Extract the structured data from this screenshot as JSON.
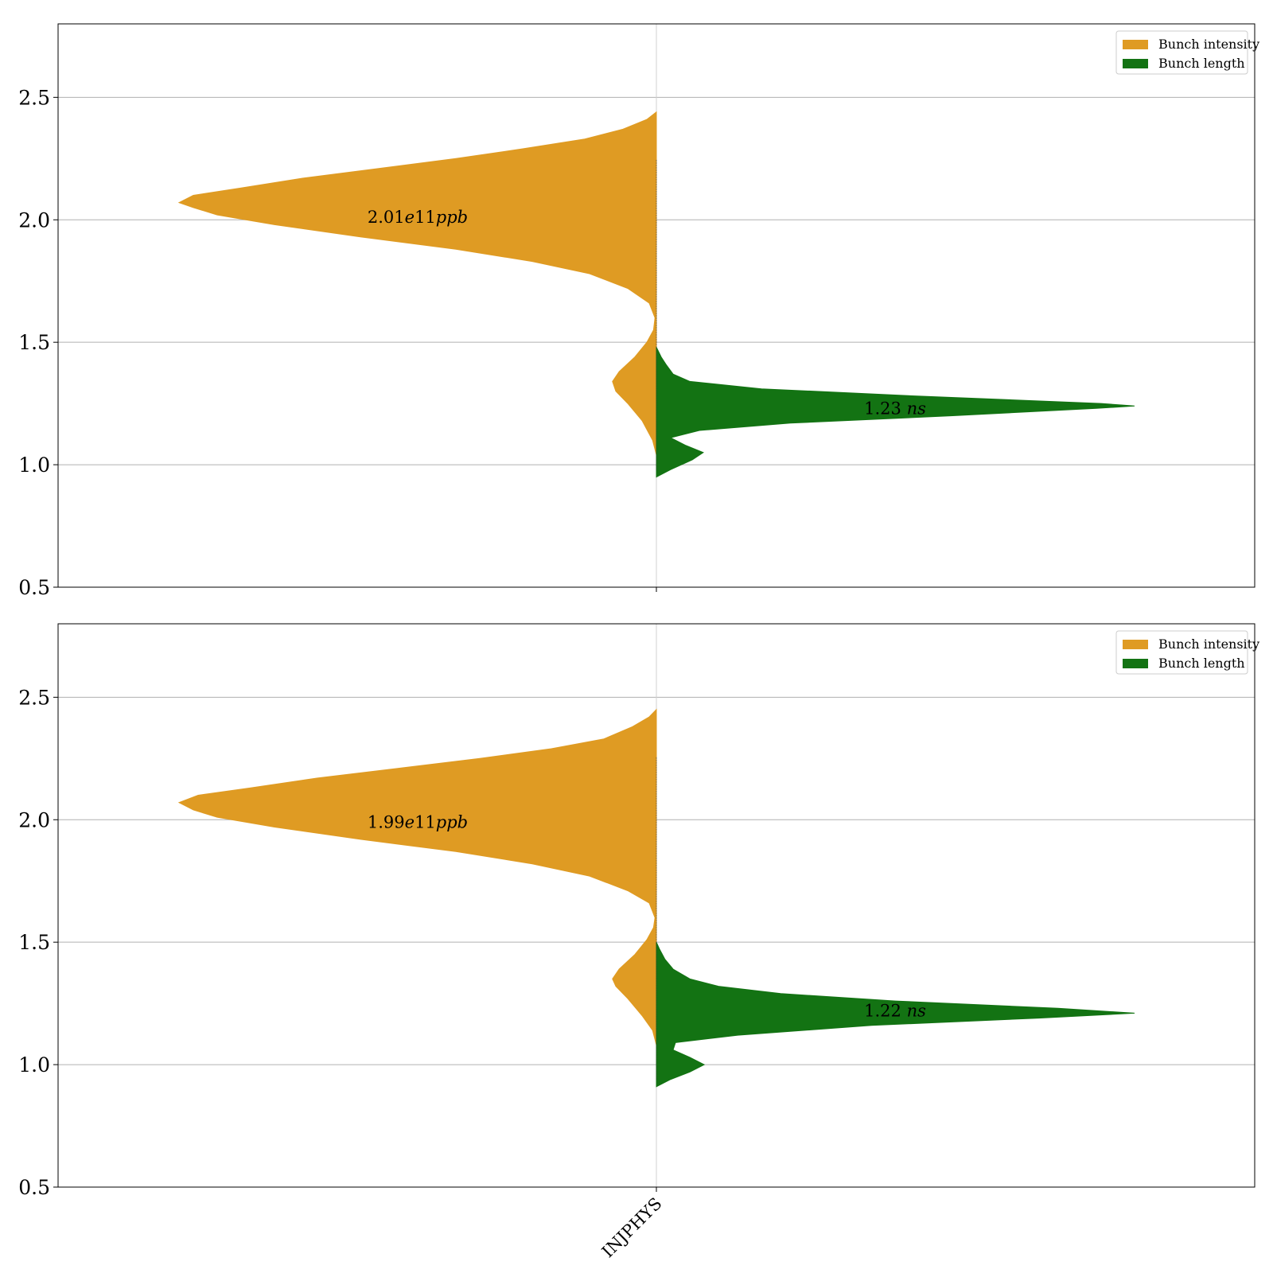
{
  "chart_data": [
    {
      "type": "violin",
      "split": true,
      "categories": [
        "INJPHYS"
      ],
      "ylim": [
        0.5,
        2.8
      ],
      "yticks": [
        "0.5",
        "1.0",
        "1.5",
        "2.0",
        "2.5"
      ],
      "grid": "horizontal",
      "legend_position": "top-right",
      "series": [
        {
          "name": "Bunch intensity",
          "color": "#DF9B23",
          "side": "left",
          "y_range": [
            1.04,
            2.44
          ],
          "density_profile": [
            [
              1.04,
              0.0
            ],
            [
              1.1,
              0.008
            ],
            [
              1.18,
              0.03
            ],
            [
              1.25,
              0.06
            ],
            [
              1.3,
              0.085
            ],
            [
              1.34,
              0.092
            ],
            [
              1.38,
              0.078
            ],
            [
              1.44,
              0.045
            ],
            [
              1.5,
              0.02
            ],
            [
              1.55,
              0.006
            ],
            [
              1.6,
              0.003
            ],
            [
              1.66,
              0.015
            ],
            [
              1.72,
              0.06
            ],
            [
              1.78,
              0.14
            ],
            [
              1.83,
              0.26
            ],
            [
              1.88,
              0.42
            ],
            [
              1.93,
              0.62
            ],
            [
              1.98,
              0.8
            ],
            [
              2.02,
              0.92
            ],
            [
              2.05,
              0.97
            ],
            [
              2.07,
              1.0
            ],
            [
              2.1,
              0.97
            ],
            [
              2.13,
              0.87
            ],
            [
              2.17,
              0.74
            ],
            [
              2.21,
              0.58
            ],
            [
              2.25,
              0.42
            ],
            [
              2.29,
              0.28
            ],
            [
              2.33,
              0.15
            ],
            [
              2.37,
              0.07
            ],
            [
              2.41,
              0.02
            ],
            [
              2.44,
              0.0
            ]
          ],
          "annotation": "2.01e11ppb",
          "annotation_y": 2.01
        },
        {
          "name": "Bunch length",
          "color": "#137313",
          "side": "right",
          "y_range": [
            0.95,
            1.48
          ],
          "density_profile": [
            [
              0.95,
              0.0
            ],
            [
              0.98,
              0.03
            ],
            [
              1.02,
              0.075
            ],
            [
              1.05,
              0.098
            ],
            [
              1.08,
              0.06
            ],
            [
              1.11,
              0.03
            ],
            [
              1.14,
              0.09
            ],
            [
              1.17,
              0.28
            ],
            [
              1.2,
              0.62
            ],
            [
              1.23,
              0.92
            ],
            [
              1.24,
              1.0
            ],
            [
              1.25,
              0.93
            ],
            [
              1.28,
              0.55
            ],
            [
              1.31,
              0.22
            ],
            [
              1.34,
              0.07
            ],
            [
              1.37,
              0.035
            ],
            [
              1.41,
              0.02
            ],
            [
              1.44,
              0.01
            ],
            [
              1.48,
              0.0
            ]
          ],
          "annotation": "1.23 ns",
          "annotation_y": 1.23
        }
      ]
    },
    {
      "type": "violin",
      "split": true,
      "categories": [
        "INJPHYS"
      ],
      "ylim": [
        0.5,
        2.8
      ],
      "yticks": [
        "0.5",
        "1.0",
        "1.5",
        "2.0",
        "2.5"
      ],
      "grid": "horizontal",
      "legend_position": "top-right",
      "series": [
        {
          "name": "Bunch intensity",
          "color": "#DF9B23",
          "side": "left",
          "y_range": [
            1.08,
            2.45
          ],
          "density_profile": [
            [
              1.08,
              0.0
            ],
            [
              1.14,
              0.008
            ],
            [
              1.2,
              0.03
            ],
            [
              1.27,
              0.06
            ],
            [
              1.32,
              0.085
            ],
            [
              1.35,
              0.092
            ],
            [
              1.39,
              0.078
            ],
            [
              1.45,
              0.045
            ],
            [
              1.51,
              0.02
            ],
            [
              1.56,
              0.006
            ],
            [
              1.6,
              0.003
            ],
            [
              1.66,
              0.015
            ],
            [
              1.71,
              0.06
            ],
            [
              1.77,
              0.14
            ],
            [
              1.82,
              0.26
            ],
            [
              1.87,
              0.42
            ],
            [
              1.92,
              0.62
            ],
            [
              1.97,
              0.8
            ],
            [
              2.01,
              0.92
            ],
            [
              2.04,
              0.97
            ],
            [
              2.07,
              1.0
            ],
            [
              2.1,
              0.96
            ],
            [
              2.13,
              0.85
            ],
            [
              2.17,
              0.71
            ],
            [
              2.21,
              0.54
            ],
            [
              2.25,
              0.37
            ],
            [
              2.29,
              0.22
            ],
            [
              2.33,
              0.11
            ],
            [
              2.38,
              0.05
            ],
            [
              2.42,
              0.015
            ],
            [
              2.45,
              0.0
            ]
          ],
          "annotation": "1.99e11ppb",
          "annotation_y": 1.99
        },
        {
          "name": "Bunch length",
          "color": "#137313",
          "side": "right",
          "y_range": [
            0.91,
            1.5
          ],
          "density_profile": [
            [
              0.91,
              0.0
            ],
            [
              0.94,
              0.03
            ],
            [
              0.97,
              0.07
            ],
            [
              1.0,
              0.1
            ],
            [
              1.03,
              0.07
            ],
            [
              1.06,
              0.035
            ],
            [
              1.09,
              0.04
            ],
            [
              1.12,
              0.17
            ],
            [
              1.16,
              0.45
            ],
            [
              1.19,
              0.8
            ],
            [
              1.21,
              1.0
            ],
            [
              1.23,
              0.84
            ],
            [
              1.26,
              0.5
            ],
            [
              1.29,
              0.26
            ],
            [
              1.32,
              0.13
            ],
            [
              1.35,
              0.07
            ],
            [
              1.39,
              0.035
            ],
            [
              1.43,
              0.018
            ],
            [
              1.47,
              0.007
            ],
            [
              1.5,
              0.0
            ]
          ],
          "annotation": "1.22 ns",
          "annotation_y": 1.22
        }
      ]
    }
  ]
}
